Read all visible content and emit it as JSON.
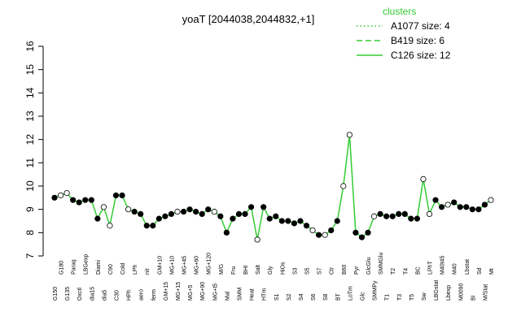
{
  "chart_data": {
    "type": "line",
    "title": "yoaT [2044038,2044832,+1]",
    "xlabel": "",
    "ylabel": "",
    "ylim": [
      7,
      16
    ],
    "yticks": [
      7,
      8,
      9,
      10,
      11,
      12,
      13,
      14,
      15,
      16
    ],
    "grid": false,
    "legend": {
      "position": "top-right",
      "title": "clusters",
      "entries": [
        {
          "label": "A1077 size: 4",
          "style": "dotted"
        },
        {
          "label": "B419 size: 6",
          "style": "dashed"
        },
        {
          "label": "C126 size: 12",
          "style": "solid"
        }
      ]
    },
    "colors": {
      "line": "#33cc33",
      "point_fill": "#000000",
      "highlight_fill": "#ffffff",
      "axis": "#000000"
    },
    "categories": [
      "G150",
      "G180",
      "G135",
      "Paraq",
      "Oxctl",
      "LBGexp",
      "dia15",
      "Diami",
      "dia5",
      "C90",
      "C30",
      "Cold",
      "HPh",
      "LPh",
      "aero",
      "nit",
      "ferm",
      "GM+10",
      "GM+15",
      "MG+10",
      "MG+15",
      "MG+45",
      "MG+5",
      "MG+60",
      "MG+90",
      "MG+120",
      "MG+t5",
      "M/G",
      "Mal",
      "Fru",
      "SMM",
      "BHI",
      "Heat",
      "Salt",
      "HTm",
      "Gly",
      "S1",
      "HiOs",
      "S2",
      "S3",
      "S4",
      "S5",
      "S6",
      "S7",
      "S8",
      "Ctr",
      "BT",
      "B60",
      "LoTm",
      "Pyr",
      "Glc",
      "GlcGlu",
      "SMMPy",
      "SMMGlu",
      "T1",
      "T2",
      "T3",
      "T4",
      "T5",
      "BC",
      "Sw",
      "LPhT",
      "LBGstat",
      "M40t45",
      "Lbexp",
      "M40",
      "M0090",
      "Lbstat",
      "BI",
      "Sd",
      "M/Stat",
      "Mt"
    ],
    "values": [
      9.5,
      9.6,
      9.7,
      9.4,
      9.3,
      9.4,
      9.4,
      8.6,
      9.1,
      8.3,
      9.6,
      9.6,
      9.0,
      8.9,
      8.8,
      8.3,
      8.3,
      8.6,
      8.7,
      8.8,
      8.9,
      8.9,
      9.0,
      8.9,
      8.8,
      9.0,
      8.9,
      8.7,
      8.0,
      8.6,
      8.8,
      8.8,
      9.1,
      7.7,
      9.1,
      8.6,
      8.7,
      8.5,
      8.5,
      8.4,
      8.5,
      8.3,
      8.1,
      7.9,
      7.9,
      8.1,
      8.5,
      10.0,
      12.2,
      8.0,
      7.8,
      8.0,
      8.7,
      8.8,
      8.7,
      8.7,
      8.8,
      8.8,
      8.6,
      8.6,
      10.3,
      8.8,
      9.4,
      9.1,
      9.2,
      9.3,
      9.1,
      9.1,
      9.0,
      9.0,
      9.2,
      9.4
    ],
    "highlight": [
      1,
      2,
      8,
      9,
      12,
      20,
      26,
      33,
      42,
      44,
      47,
      48,
      52,
      60,
      61,
      64,
      71
    ]
  }
}
